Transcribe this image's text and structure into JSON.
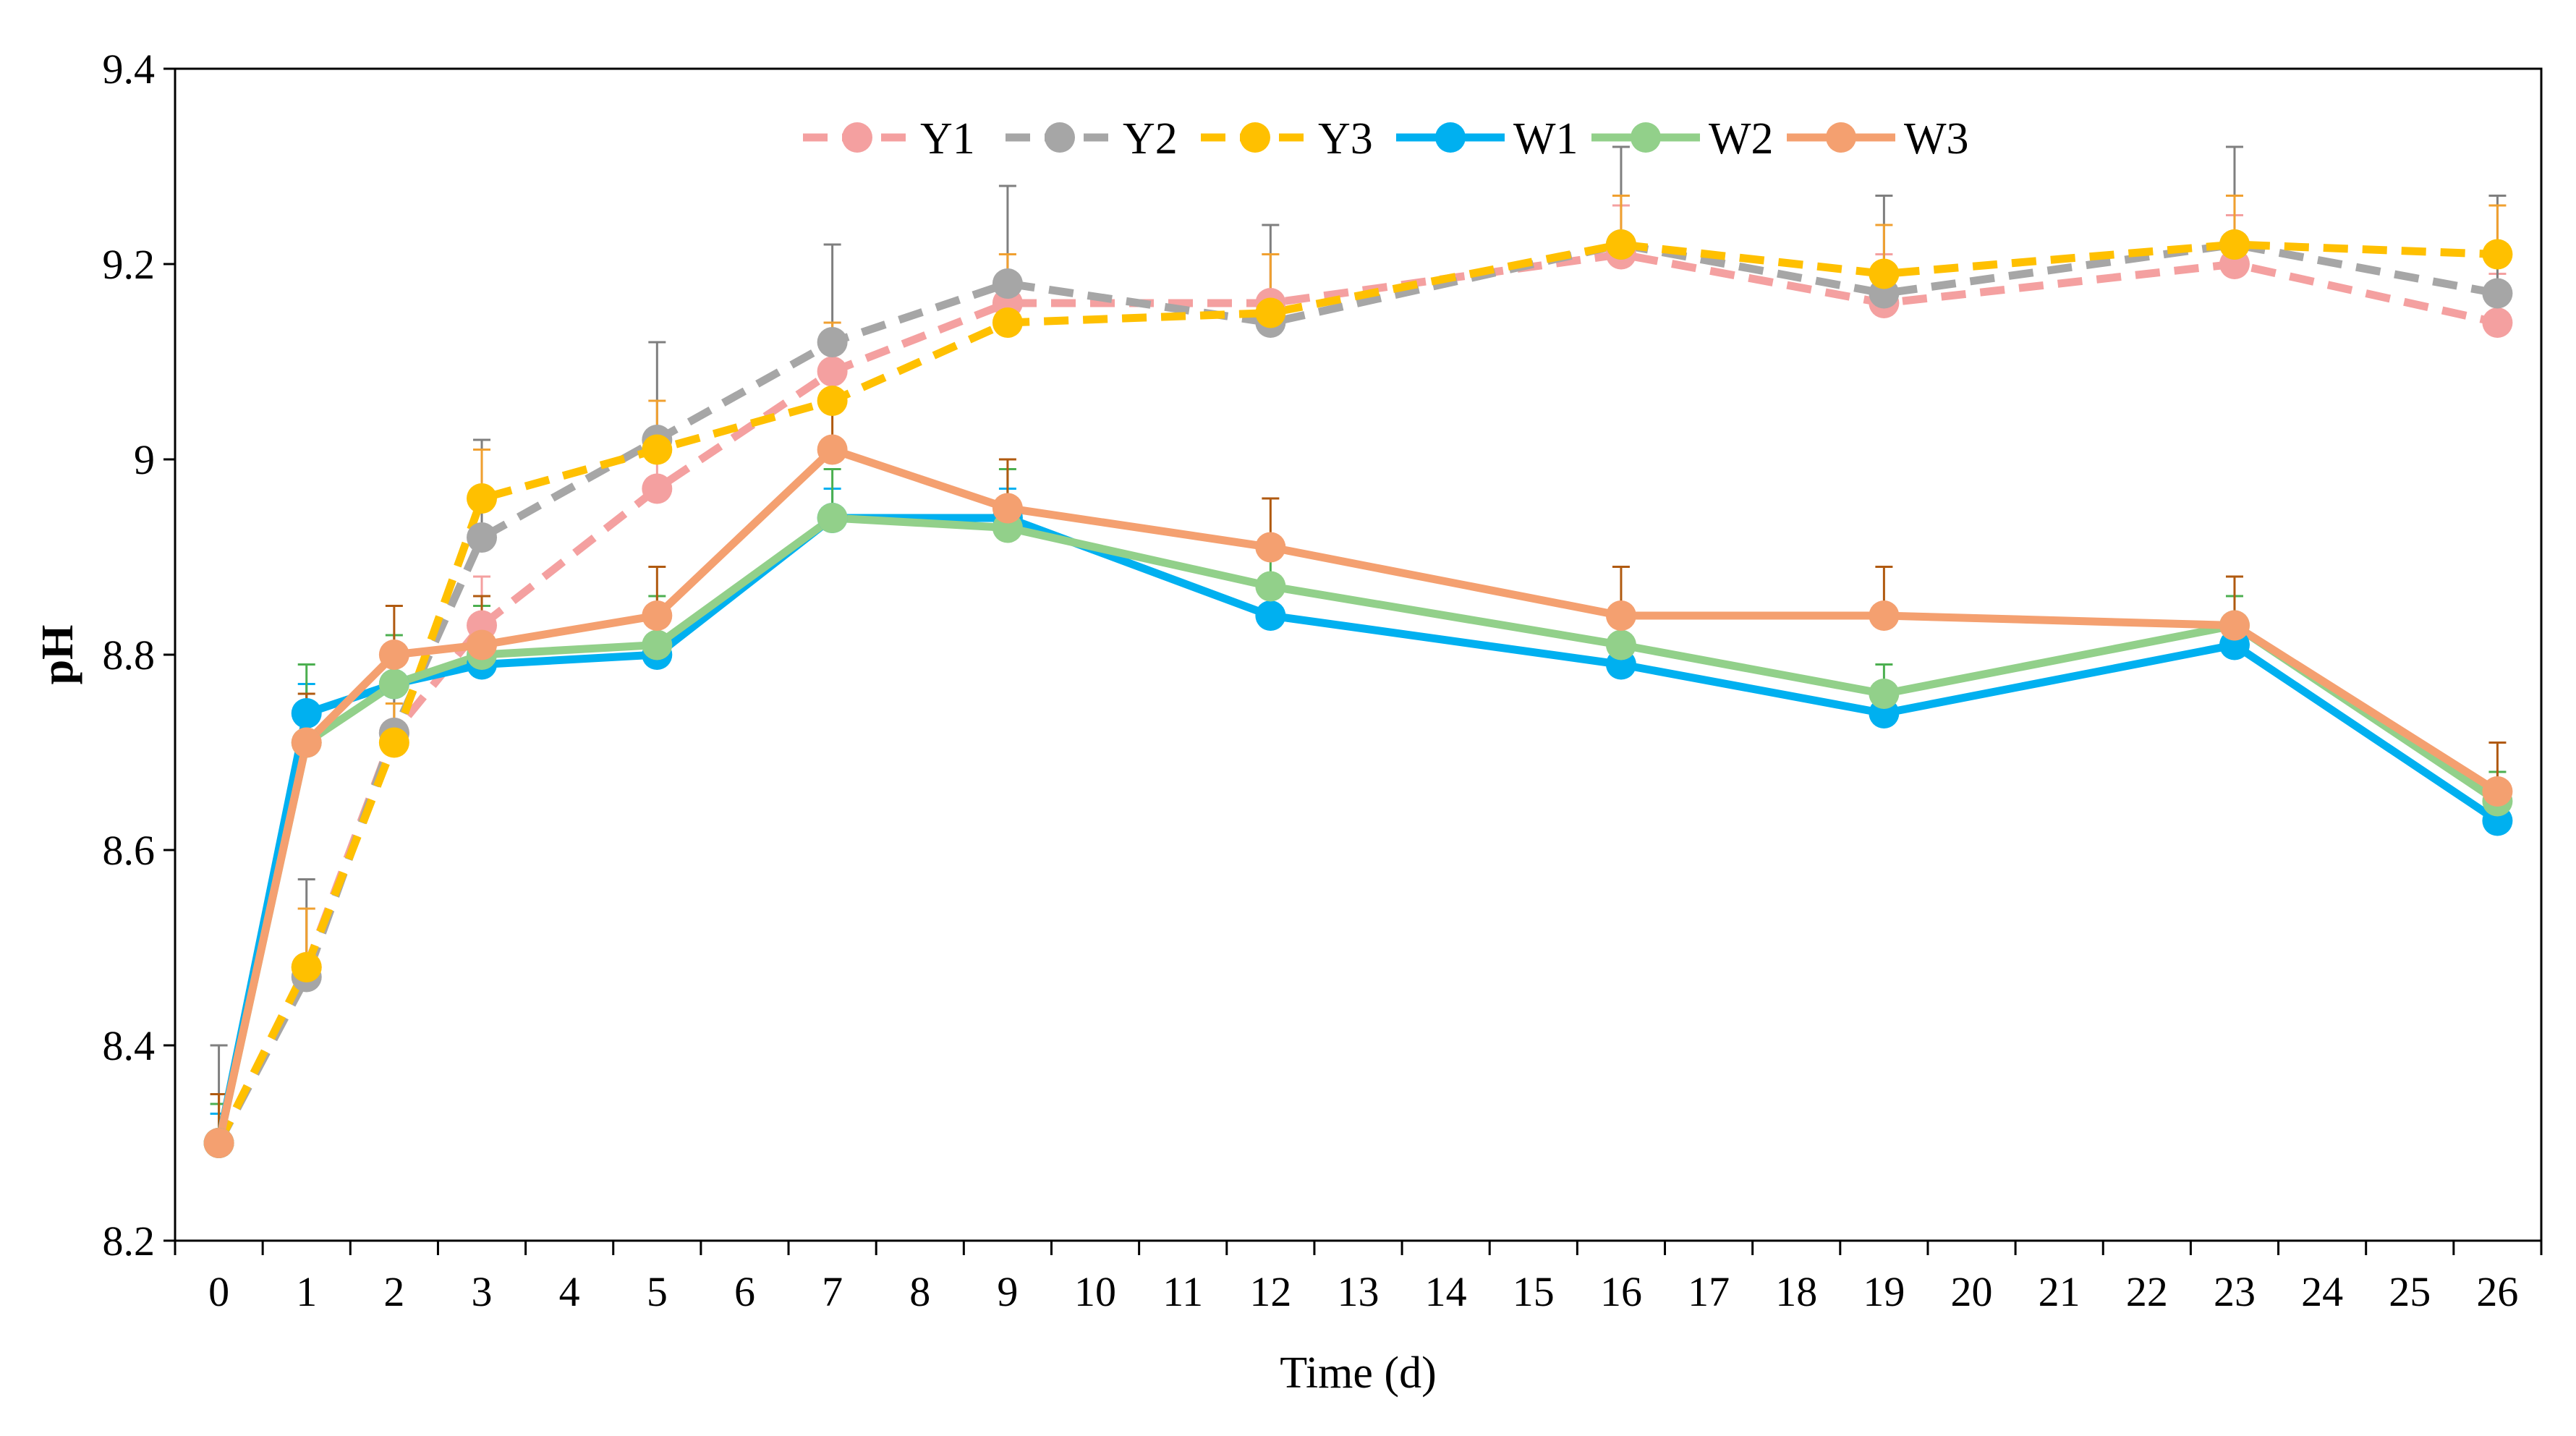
{
  "chart_data": {
    "type": "line",
    "title": "",
    "xlabel": "Time (d)",
    "ylabel": "pH",
    "xlim": [
      0,
      26
    ],
    "ylim": [
      8.2,
      9.4
    ],
    "x_ticks": [
      0,
      1,
      2,
      3,
      4,
      5,
      6,
      7,
      8,
      9,
      10,
      11,
      12,
      13,
      14,
      15,
      16,
      17,
      18,
      19,
      20,
      21,
      22,
      23,
      24,
      25,
      26
    ],
    "y_ticks": [
      "8.2",
      "8.4",
      "8.6",
      "8.8",
      "9",
      "9.2",
      "9.4"
    ],
    "grid": false,
    "legend_position": "top-center",
    "x": [
      0,
      1,
      2,
      3,
      5,
      7,
      9,
      12,
      16,
      19,
      23,
      26
    ],
    "series": [
      {
        "name": "Y1",
        "color": "#F4A0A0",
        "dashed": true,
        "error_color": "#F4A0A0",
        "values": [
          8.3,
          8.48,
          8.72,
          8.83,
          8.97,
          9.09,
          9.16,
          9.16,
          9.21,
          9.16,
          9.2,
          9.14
        ],
        "errors": [
          0.05,
          0.06,
          0.04,
          0.05,
          0.05,
          0.05,
          0.05,
          0.05,
          0.05,
          0.05,
          0.05,
          0.05
        ]
      },
      {
        "name": "Y2",
        "color": "#A6A6A6",
        "dashed": true,
        "error_color": "#7F7F7F",
        "values": [
          8.3,
          8.47,
          8.72,
          8.92,
          9.02,
          9.12,
          9.18,
          9.14,
          9.22,
          9.17,
          9.22,
          9.17
        ],
        "errors": [
          0.1,
          0.1,
          0.05,
          0.1,
          0.1,
          0.1,
          0.1,
          0.1,
          0.1,
          0.1,
          0.1,
          0.1
        ]
      },
      {
        "name": "Y3",
        "color": "#FFC000",
        "dashed": true,
        "error_color": "#F0A030",
        "values": [
          8.3,
          8.48,
          8.71,
          8.96,
          9.01,
          9.06,
          9.14,
          9.15,
          9.22,
          9.19,
          9.22,
          9.21
        ],
        "errors": [
          0.05,
          0.06,
          0.04,
          0.05,
          0.05,
          0.08,
          0.07,
          0.06,
          0.05,
          0.05,
          0.05,
          0.05
        ]
      },
      {
        "name": "W1",
        "color": "#00B0F0",
        "dashed": false,
        "error_color": "#00B0F0",
        "values": [
          8.3,
          8.74,
          8.77,
          8.79,
          8.8,
          8.94,
          8.94,
          8.84,
          8.79,
          8.74,
          8.81,
          8.63
        ],
        "errors": [
          0.03,
          0.03,
          0.03,
          0.03,
          0.03,
          0.03,
          0.03,
          0.03,
          0.03,
          0.03,
          0.03,
          0.03
        ]
      },
      {
        "name": "W2",
        "color": "#92D08A",
        "dashed": false,
        "error_color": "#4CAF50",
        "values": [
          8.3,
          8.71,
          8.77,
          8.8,
          8.81,
          8.94,
          8.93,
          8.87,
          8.81,
          8.76,
          8.83,
          8.65
        ],
        "errors": [
          0.04,
          0.08,
          0.05,
          0.05,
          0.05,
          0.05,
          0.06,
          0.05,
          0.04,
          0.03,
          0.03,
          0.03
        ]
      },
      {
        "name": "W3",
        "color": "#F4A070",
        "dashed": false,
        "error_color": "#B05A10",
        "values": [
          8.3,
          8.71,
          8.8,
          8.81,
          8.84,
          9.01,
          8.95,
          8.91,
          8.84,
          8.84,
          8.83,
          8.66
        ],
        "errors": [
          0.05,
          0.05,
          0.05,
          0.05,
          0.05,
          0.05,
          0.05,
          0.05,
          0.05,
          0.05,
          0.05,
          0.05
        ]
      }
    ]
  }
}
